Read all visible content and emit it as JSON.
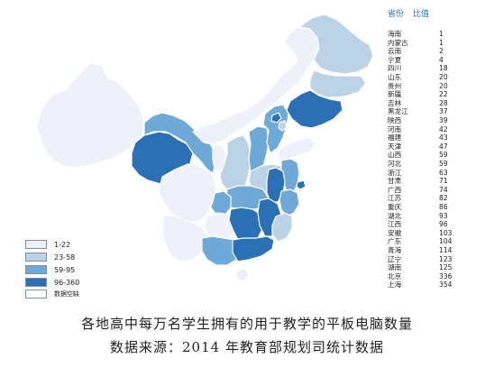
{
  "table": {
    "header_province": "省份",
    "header_value": "比值",
    "rows": [
      {
        "province": "海南",
        "value": "1"
      },
      {
        "province": "内蒙古",
        "value": "1"
      },
      {
        "province": "云南",
        "value": "2"
      },
      {
        "province": "宁夏",
        "value": "4"
      },
      {
        "province": "四川",
        "value": "18"
      },
      {
        "province": "山东",
        "value": "20"
      },
      {
        "province": "贵州",
        "value": "20"
      },
      {
        "province": "新疆",
        "value": "22"
      },
      {
        "province": "吉林",
        "value": "28"
      },
      {
        "province": "黑龙江",
        "value": "37"
      },
      {
        "province": "陕西",
        "value": "39"
      },
      {
        "province": "河南",
        "value": "42"
      },
      {
        "province": "福建",
        "value": "43"
      },
      {
        "province": "天津",
        "value": "47"
      },
      {
        "province": "山西",
        "value": "59"
      },
      {
        "province": "河北",
        "value": "59"
      },
      {
        "province": "浙江",
        "value": "63"
      },
      {
        "province": "甘肃",
        "value": "71"
      },
      {
        "province": "广西",
        "value": "74"
      },
      {
        "province": "江苏",
        "value": "82"
      },
      {
        "province": "重庆",
        "value": "86"
      },
      {
        "province": "湖北",
        "value": "93"
      },
      {
        "province": "江西",
        "value": "96"
      },
      {
        "province": "安徽",
        "value": "103"
      },
      {
        "province": "广东",
        "value": "104"
      },
      {
        "province": "青海",
        "value": "114"
      },
      {
        "province": "辽宁",
        "value": "123"
      },
      {
        "province": "湖南",
        "value": "125"
      },
      {
        "province": "北京",
        "value": "336"
      },
      {
        "province": "上海",
        "value": "354"
      }
    ]
  },
  "legend": [
    {
      "label": "1-22",
      "color": "#eef1fa"
    },
    {
      "label": "23-58",
      "color": "#bcd3e6"
    },
    {
      "label": "59-95",
      "color": "#6ea9d8"
    },
    {
      "label": "96-360",
      "color": "#2b6fb4"
    },
    {
      "label": "数据空缺",
      "color": "#ffffff"
    }
  ],
  "caption": {
    "line1": "各地高中每万名学生拥有的用于教学的平板电脑数量",
    "line2": "数据来源：2014 年教育部规划司统计数据"
  }
}
